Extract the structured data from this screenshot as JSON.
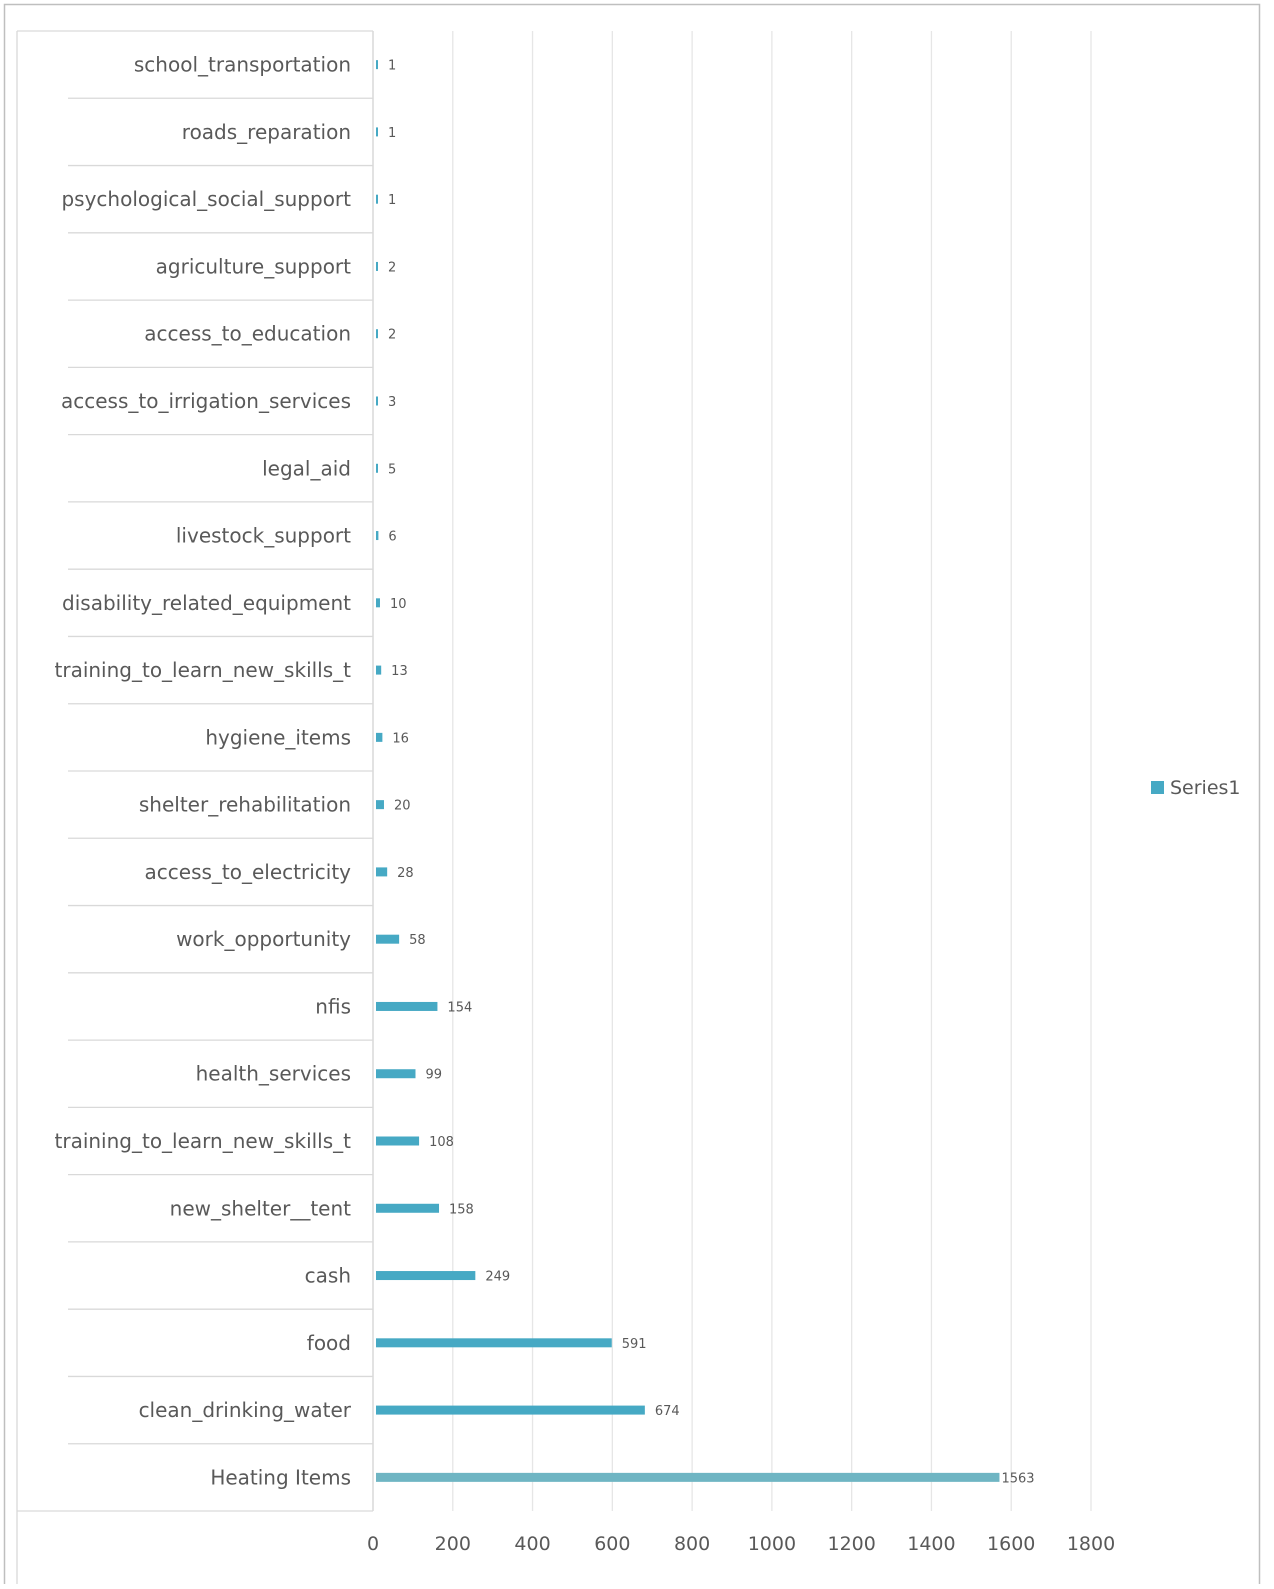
{
  "chart_data": {
    "type": "bar",
    "orientation": "horizontal",
    "title": "",
    "xlabel": "",
    "ylabel": "",
    "categories": [
      "school_transportation",
      "roads_reparation",
      "psychological_social_support",
      "agriculture_support",
      "access_to_education",
      "access_to_irrigation_services",
      "legal_aid",
      "livestock_support",
      "disability_related_equipment",
      "training_to_learn_new_skills_t",
      "hygiene_items",
      "shelter_rehabilitation",
      "access_to_electricity",
      "work_opportunity",
      "nfis",
      "health_services",
      "training_to_learn_new_skills_t",
      "new_shelter__tent",
      "cash",
      "food",
      "clean_drinking_water",
      "Heating Items"
    ],
    "series": [
      {
        "name": "Series1",
        "values": [
          1,
          1,
          1,
          2,
          2,
          3,
          5,
          6,
          10,
          13,
          16,
          20,
          28,
          58,
          154,
          99,
          108,
          158,
          249,
          591,
          674,
          1563
        ],
        "color": "#46a9c4"
      }
    ],
    "highlight": {
      "category_index": 21,
      "color": "#6fb5c3"
    },
    "xlim": [
      0,
      1800
    ],
    "x_ticks": [
      0,
      200,
      400,
      600,
      800,
      1000,
      1200,
      1400,
      1600,
      1800
    ],
    "grid": true,
    "legend": {
      "position": "right",
      "entries": [
        "Series1"
      ]
    },
    "colors": {
      "axis": "#d9d9d9",
      "grid": "#e6e6e6",
      "label": "#595959",
      "frame": "#bfbfbf"
    }
  }
}
